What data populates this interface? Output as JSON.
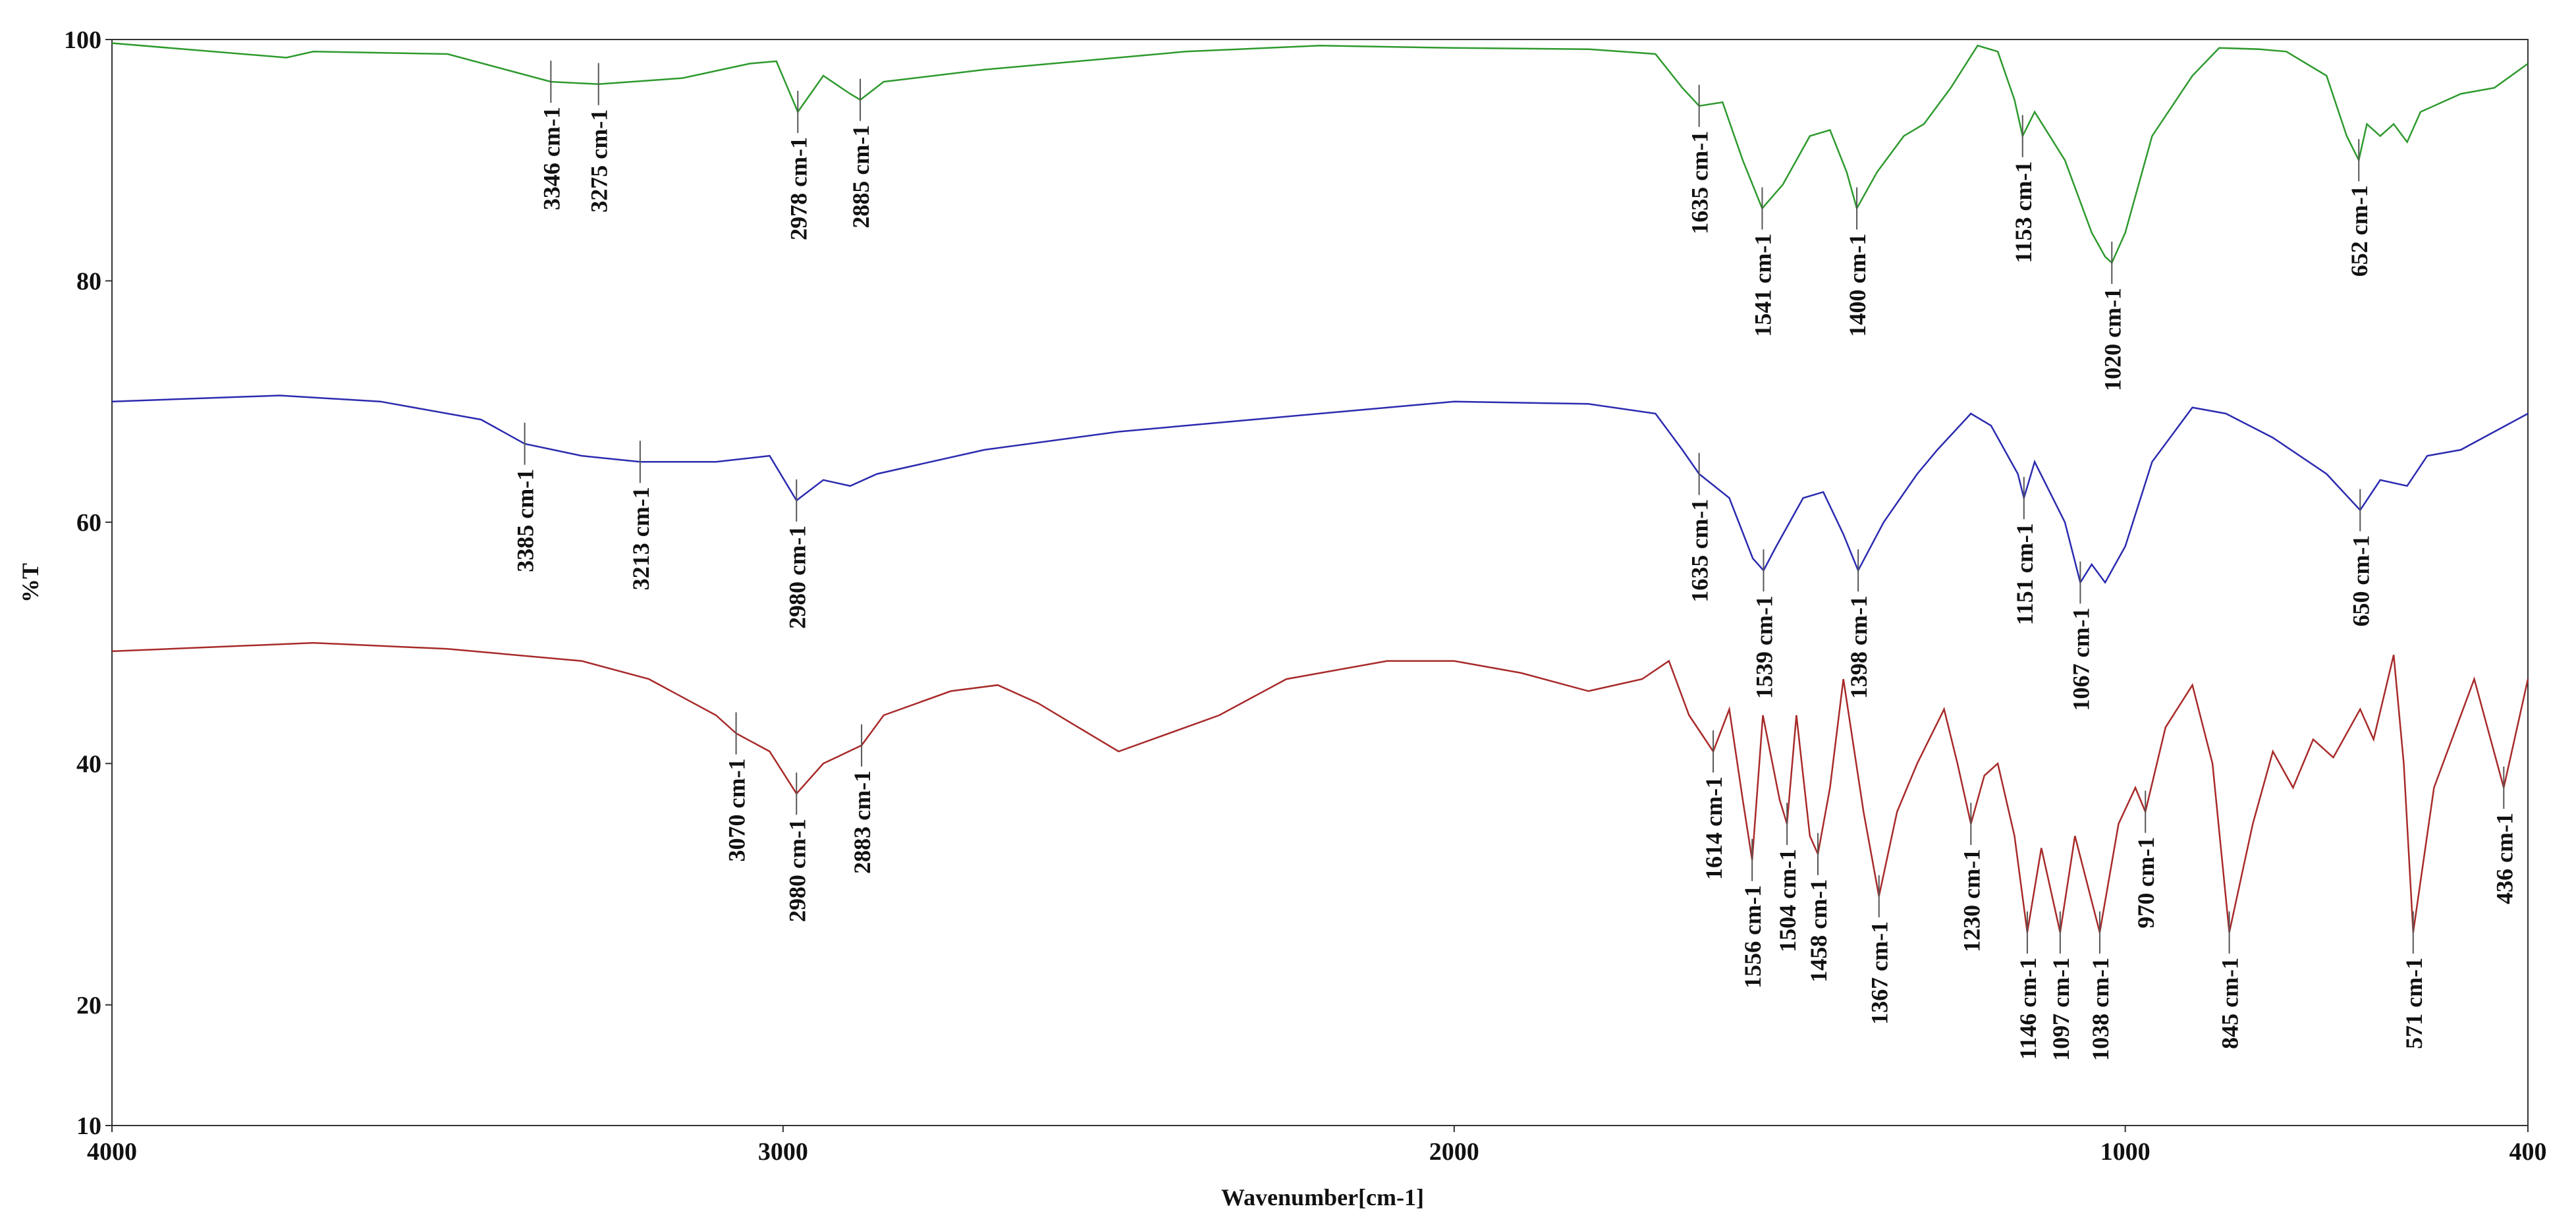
{
  "chart_data": {
    "type": "line",
    "xlabel": "Wavenumber[cm-1]",
    "ylabel": "%T",
    "xlim": [
      4000,
      400
    ],
    "xticks": [
      4000,
      3000,
      2000,
      1000,
      400
    ],
    "ylim": [
      10,
      100
    ],
    "yticks": [
      10,
      20,
      40,
      60,
      80,
      100
    ],
    "series": [
      {
        "color": "#2e9a2e",
        "x": [
          4000,
          3740,
          3700,
          3500,
          3346,
          3275,
          3150,
          3050,
          3010,
          2978,
          2940,
          2900,
          2885,
          2850,
          2700,
          2600,
          2400,
          2200,
          2000,
          1800,
          1700,
          1660,
          1635,
          1600,
          1570,
          1541,
          1510,
          1470,
          1440,
          1415,
          1400,
          1370,
          1330,
          1300,
          1260,
          1220,
          1190,
          1165,
          1153,
          1135,
          1090,
          1050,
          1030,
          1020,
          1000,
          960,
          900,
          860,
          800,
          760,
          700,
          670,
          652,
          640,
          620,
          600,
          580,
          560,
          500,
          450,
          400
        ],
        "values": [
          99.7,
          98.5,
          99,
          98.8,
          96.5,
          96.3,
          96.8,
          98,
          98.2,
          94,
          97,
          95.5,
          95,
          96.5,
          97.5,
          98,
          99,
          99.5,
          99.3,
          99.2,
          98.8,
          96,
          94.5,
          94.8,
          90,
          86,
          88,
          92,
          92.5,
          89,
          86,
          89,
          92,
          93,
          96,
          99.5,
          99,
          95,
          92,
          94,
          90,
          84,
          82,
          81.5,
          84,
          92,
          97,
          99.3,
          99.2,
          99,
          97,
          92,
          90,
          93,
          92,
          93,
          91.5,
          94,
          95.5,
          96,
          98
        ]
      },
      {
        "color": "#2b2bb0",
        "x": [
          4000,
          3750,
          3600,
          3450,
          3385,
          3300,
          3213,
          3100,
          3020,
          2980,
          2940,
          2900,
          2860,
          2700,
          2500,
          2300,
          2000,
          1800,
          1700,
          1660,
          1635,
          1590,
          1555,
          1539,
          1520,
          1480,
          1450,
          1420,
          1398,
          1360,
          1310,
          1280,
          1230,
          1200,
          1160,
          1151,
          1135,
          1090,
          1067,
          1050,
          1030,
          1000,
          960,
          900,
          850,
          780,
          700,
          650,
          620,
          580,
          550,
          500,
          400
        ],
        "values": [
          70,
          70.5,
          70,
          68.5,
          66.5,
          65.5,
          65,
          65,
          65.5,
          61.8,
          63.5,
          63,
          64,
          66,
          67.5,
          68.5,
          70,
          69.8,
          69,
          66,
          64,
          62,
          57,
          56,
          58,
          62,
          62.5,
          59,
          56,
          60,
          64,
          66,
          69,
          68,
          64,
          62,
          65,
          60,
          55,
          56.5,
          55,
          58,
          65,
          69.5,
          69,
          67,
          64,
          61,
          63.5,
          63,
          65.5,
          66,
          69
        ]
      },
      {
        "color": "#a82a2a",
        "x": [
          4000,
          3700,
          3500,
          3300,
          3200,
          3100,
          3070,
          3020,
          2980,
          2940,
          2883,
          2850,
          2750,
          2680,
          2620,
          2560,
          2500,
          2450,
          2350,
          2250,
          2100,
          2000,
          1900,
          1800,
          1720,
          1680,
          1650,
          1614,
          1590,
          1570,
          1556,
          1540,
          1515,
          1504,
          1490,
          1470,
          1458,
          1440,
          1420,
          1390,
          1367,
          1340,
          1310,
          1270,
          1250,
          1230,
          1210,
          1190,
          1165,
          1146,
          1125,
          1097,
          1075,
          1038,
          1010,
          985,
          970,
          940,
          900,
          870,
          845,
          810,
          780,
          750,
          720,
          690,
          650,
          630,
          600,
          585,
          571,
          540,
          480,
          436,
          400
        ],
        "values": [
          49.3,
          50,
          49.5,
          48.5,
          47,
          44,
          42.5,
          41,
          37.5,
          40,
          41.5,
          44,
          46,
          46.5,
          45,
          43,
          41,
          42,
          44,
          47,
          48.5,
          48.5,
          47.5,
          46,
          47,
          48.5,
          44,
          41,
          44.5,
          37,
          32,
          44,
          37,
          35,
          44,
          34,
          32.5,
          38,
          47,
          36,
          29,
          36,
          40,
          44.5,
          40,
          35,
          39,
          40,
          34,
          26,
          33,
          26,
          34,
          26,
          35,
          38,
          36,
          43,
          46.5,
          40,
          26,
          35,
          41,
          38,
          42,
          40.5,
          44.5,
          42,
          49,
          40,
          26,
          38,
          47,
          38,
          47
        ]
      }
    ],
    "annotations": [
      {
        "text": "3346 cm-1",
        "x": 3346,
        "y": 96.5
      },
      {
        "text": "3275 cm-1",
        "x": 3275,
        "y": 96.3
      },
      {
        "text": "2978 cm-1",
        "x": 2978,
        "y": 94
      },
      {
        "text": "2885 cm-1",
        "x": 2885,
        "y": 95
      },
      {
        "text": "1635 cm-1",
        "x": 1635,
        "y": 94.5
      },
      {
        "text": "1541 cm-1",
        "x": 1541,
        "y": 86
      },
      {
        "text": "1400 cm-1",
        "x": 1400,
        "y": 86
      },
      {
        "text": "1153 cm-1",
        "x": 1153,
        "y": 92
      },
      {
        "text": "1020 cm-1",
        "x": 1020,
        "y": 81.5
      },
      {
        "text": "652 cm-1",
        "x": 652,
        "y": 90
      },
      {
        "text": "3385 cm-1",
        "x": 3385,
        "y": 66.5
      },
      {
        "text": "3213 cm-1",
        "x": 3213,
        "y": 65
      },
      {
        "text": "2980 cm-1",
        "x": 2980,
        "y": 61.8
      },
      {
        "text": "1635 cm-1",
        "x": 1635,
        "y": 64
      },
      {
        "text": "1539 cm-1",
        "x": 1539,
        "y": 56
      },
      {
        "text": "1398 cm-1",
        "x": 1398,
        "y": 56
      },
      {
        "text": "1151 cm-1",
        "x": 1151,
        "y": 62
      },
      {
        "text": "1067 cm-1",
        "x": 1067,
        "y": 55
      },
      {
        "text": "650 cm-1",
        "x": 650,
        "y": 61
      },
      {
        "text": "3070 cm-1",
        "x": 3070,
        "y": 42.5
      },
      {
        "text": "2980 cm-1",
        "x": 2980,
        "y": 37.5
      },
      {
        "text": "2883 cm-1",
        "x": 2883,
        "y": 41.5
      },
      {
        "text": "1614 cm-1",
        "x": 1614,
        "y": 41
      },
      {
        "text": "1556 cm-1",
        "x": 1556,
        "y": 32
      },
      {
        "text": "1504 cm-1",
        "x": 1504,
        "y": 35
      },
      {
        "text": "1458 cm-1",
        "x": 1458,
        "y": 32.5
      },
      {
        "text": "1367 cm-1",
        "x": 1367,
        "y": 29
      },
      {
        "text": "1230 cm-1",
        "x": 1230,
        "y": 35
      },
      {
        "text": "1146 cm-1",
        "x": 1146,
        "y": 26
      },
      {
        "text": "1097 cm-1",
        "x": 1097,
        "y": 26
      },
      {
        "text": "1038 cm-1",
        "x": 1038,
        "y": 26
      },
      {
        "text": "970 cm-1",
        "x": 970,
        "y": 36
      },
      {
        "text": "845 cm-1",
        "x": 845,
        "y": 26
      },
      {
        "text": "571 cm-1",
        "x": 571,
        "y": 26
      },
      {
        "text": "436 cm-1",
        "x": 436,
        "y": 38
      }
    ]
  }
}
